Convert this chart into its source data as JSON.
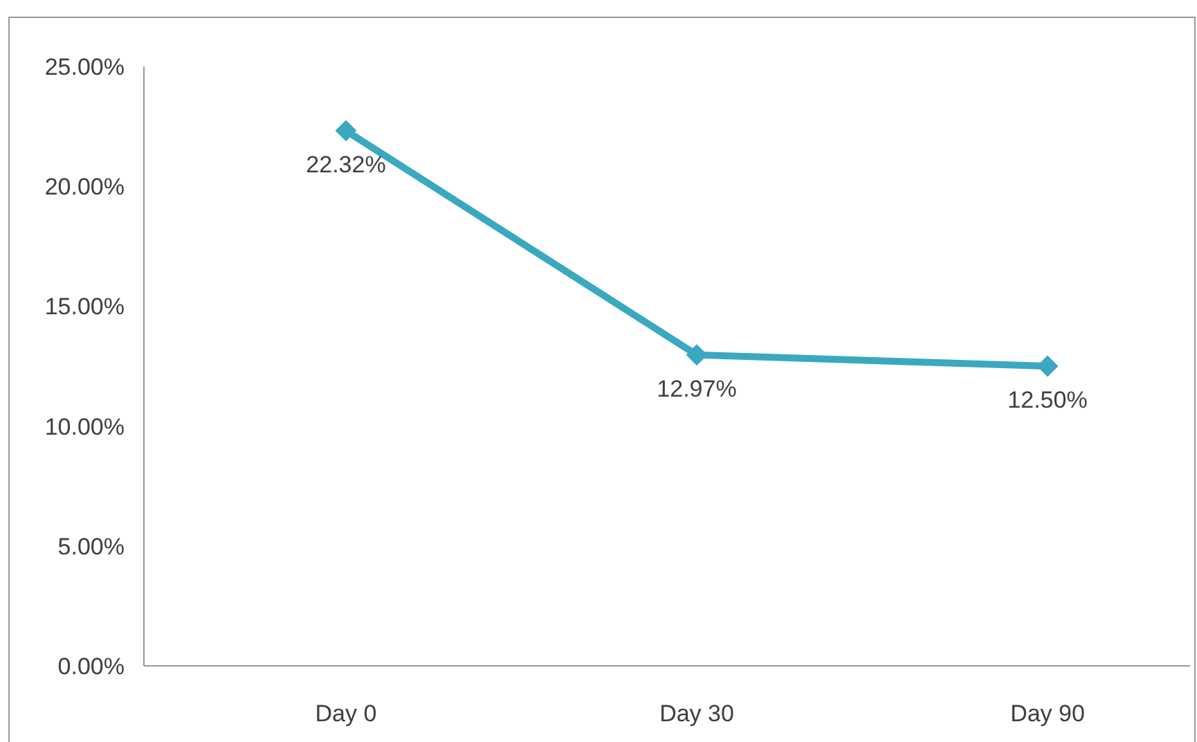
{
  "chart_data": {
    "type": "line",
    "categories": [
      "Day 0",
      "Day 30",
      "Day 90"
    ],
    "series": [
      {
        "color": "#3aa8c1",
        "values": [
          22.32,
          12.97,
          12.5
        ],
        "value_labels": [
          "22.32%",
          "12.97%",
          "12.50%"
        ]
      }
    ],
    "ylim": [
      0,
      25
    ],
    "yticks": [
      {
        "value": 0,
        "label": "0.00%"
      },
      {
        "value": 5,
        "label": "5.00%"
      },
      {
        "value": 10,
        "label": "10.00%"
      },
      {
        "value": 15,
        "label": "15.00%"
      },
      {
        "value": 20,
        "label": "20.00%"
      },
      {
        "value": 25,
        "label": "25.00%"
      }
    ],
    "grid": false,
    "legend": false,
    "marker": "diamond",
    "line_style": "solid"
  }
}
